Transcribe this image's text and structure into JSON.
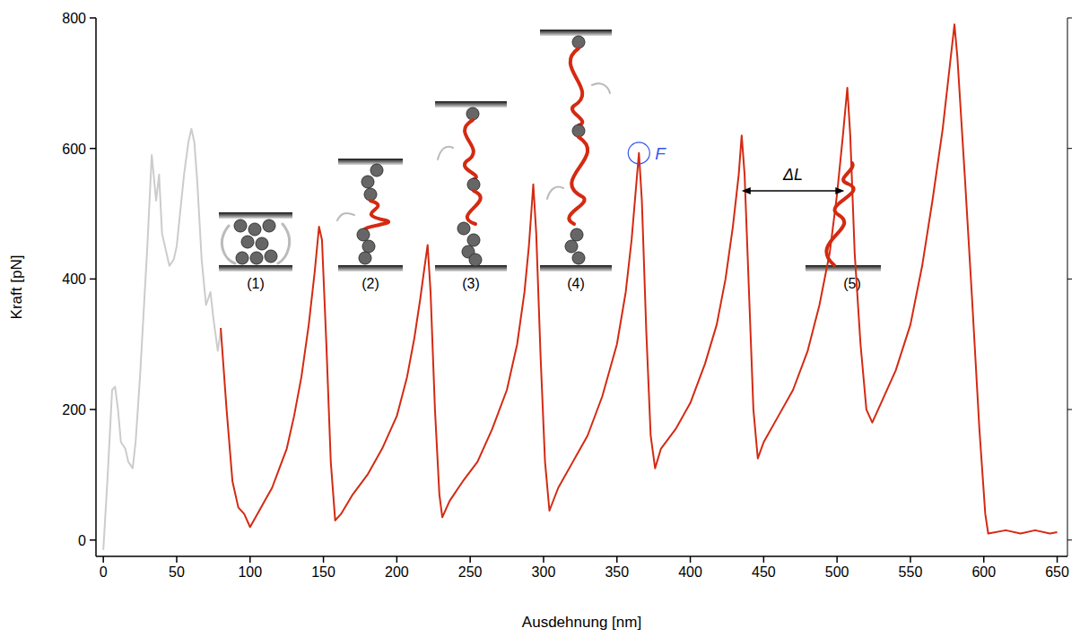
{
  "chart_data": {
    "type": "line",
    "x_label": "Ausdehnung [nm]",
    "y_label": "Kraft [pN]",
    "xlim": [
      -5,
      657
    ],
    "ylim": [
      -25,
      800
    ],
    "xticks": [
      0,
      50,
      100,
      150,
      200,
      250,
      300,
      350,
      400,
      450,
      500,
      550,
      600,
      650
    ],
    "yticks": [
      0,
      200,
      400,
      600,
      800
    ],
    "grid": false,
    "series": [
      {
        "color": "#cccccc",
        "x": [
          0,
          3,
          6,
          8,
          10,
          12,
          15,
          17,
          20,
          22,
          25,
          30,
          33,
          36,
          38,
          40,
          45,
          48,
          50,
          55,
          58,
          60,
          62,
          64,
          67,
          70,
          73,
          75,
          78,
          80
        ],
        "values": [
          -15,
          100,
          230,
          235,
          200,
          150,
          140,
          120,
          110,
          150,
          250,
          450,
          590,
          520,
          560,
          470,
          420,
          430,
          450,
          560,
          610,
          630,
          610,
          550,
          430,
          360,
          380,
          340,
          290,
          320
        ]
      },
      {
        "color": "#d42a12",
        "x": [
          80,
          84,
          88,
          92,
          96,
          100,
          105,
          110,
          115,
          120,
          125,
          130,
          135,
          140,
          144,
          147,
          149,
          152,
          155,
          158,
          162,
          170,
          180,
          190,
          200,
          207,
          212,
          216,
          219,
          221,
          223,
          226,
          229,
          231,
          236,
          245,
          255,
          265,
          275,
          282,
          287,
          290,
          293,
          295,
          298,
          301,
          304,
          310,
          320,
          330,
          340,
          350,
          356,
          360,
          363,
          365,
          367,
          370,
          373,
          376,
          380,
          390,
          400,
          410,
          418,
          424,
          429,
          433,
          435,
          437,
          440,
          443,
          446,
          450,
          460,
          470,
          480,
          488,
          495,
          500,
          504,
          507,
          509,
          512,
          516,
          520,
          524,
          530,
          540,
          550,
          558,
          565,
          572,
          577,
          580,
          582,
          587,
          592,
          597,
          601,
          603,
          615,
          625,
          635,
          645,
          650
        ],
        "values": [
          325,
          200,
          90,
          50,
          40,
          20,
          40,
          60,
          80,
          110,
          140,
          190,
          250,
          330,
          410,
          480,
          460,
          300,
          120,
          30,
          40,
          70,
          100,
          140,
          190,
          250,
          310,
          370,
          420,
          452,
          380,
          200,
          70,
          35,
          60,
          90,
          120,
          170,
          230,
          300,
          380,
          450,
          545,
          470,
          280,
          120,
          45,
          80,
          120,
          160,
          220,
          300,
          380,
          460,
          540,
          593,
          520,
          320,
          160,
          110,
          140,
          170,
          210,
          270,
          330,
          400,
          480,
          560,
          620,
          560,
          380,
          200,
          125,
          150,
          190,
          230,
          290,
          360,
          440,
          530,
          620,
          693,
          620,
          440,
          300,
          200,
          180,
          210,
          260,
          330,
          420,
          520,
          630,
          730,
          790,
          740,
          560,
          370,
          170,
          40,
          10,
          15,
          10,
          15,
          10,
          12
        ]
      }
    ],
    "annotations": [
      {
        "text": "F",
        "x": 365,
        "y": 593,
        "color": "#3355ee"
      },
      {
        "text": "ΔL",
        "x": [
          435,
          505
        ],
        "y": 535
      }
    ],
    "stages": [
      "(1)",
      "(2)",
      "(3)",
      "(4)",
      "(5)"
    ]
  }
}
